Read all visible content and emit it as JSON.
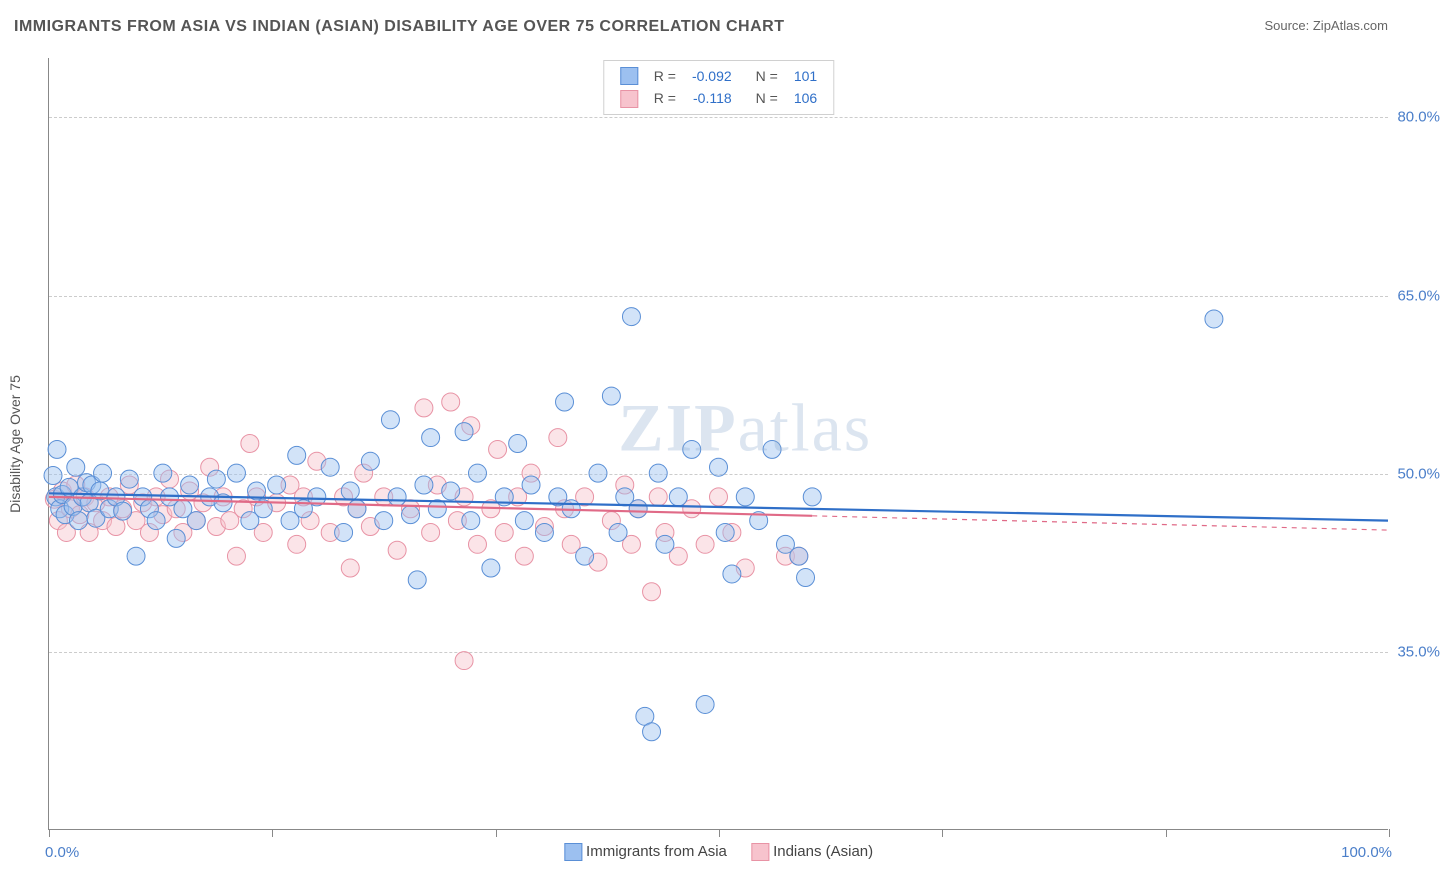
{
  "title": "IMMIGRANTS FROM ASIA VS INDIAN (ASIAN) DISABILITY AGE OVER 75 CORRELATION CHART",
  "source_prefix": "Source: ",
  "source_name": "ZipAtlas.com",
  "watermark_zip": "ZIP",
  "watermark_atlas": "atlas",
  "yaxis_title": "Disability Age Over 75",
  "chart": {
    "type": "scatter",
    "xlim": [
      0,
      100
    ],
    "ylim": [
      20,
      85
    ],
    "ygrid_values": [
      35.0,
      50.0,
      65.0,
      80.0
    ],
    "ygrid_labels": [
      "35.0%",
      "50.0%",
      "65.0%",
      "80.0%"
    ],
    "xtick_values": [
      0,
      16.67,
      33.33,
      50.0,
      66.67,
      83.33,
      100.0
    ],
    "xaxis_label_left": "0.0%",
    "xaxis_label_right": "100.0%",
    "background_color": "#ffffff",
    "grid_color": "#cccccc",
    "axis_color": "#888888",
    "point_radius": 9,
    "point_opacity": 0.45,
    "line_width": 2.2,
    "series": [
      {
        "id": "blue",
        "name": "Immigrants from Asia",
        "fill": "#9cc0f0",
        "stroke": "#5a8fd6",
        "line_color": "#2f6fc8",
        "R": "-0.092",
        "N": "101",
        "trend": {
          "x1": 0,
          "y1": 48.3,
          "x2": 100,
          "y2": 46.0,
          "solid_until": 100
        },
        "points": [
          [
            0.3,
            49.8
          ],
          [
            0.5,
            48.0
          ],
          [
            0.6,
            52.0
          ],
          [
            0.8,
            47.0
          ],
          [
            1.0,
            48.2
          ],
          [
            1.2,
            46.5
          ],
          [
            1.5,
            48.8
          ],
          [
            1.8,
            47.2
          ],
          [
            2.0,
            50.5
          ],
          [
            2.2,
            46.0
          ],
          [
            2.5,
            48.0
          ],
          [
            2.8,
            49.2
          ],
          [
            3.0,
            47.5
          ],
          [
            3.2,
            49.0
          ],
          [
            3.5,
            46.2
          ],
          [
            3.8,
            48.5
          ],
          [
            4.0,
            50.0
          ],
          [
            4.5,
            47.0
          ],
          [
            5.0,
            48.0
          ],
          [
            5.5,
            46.8
          ],
          [
            6.0,
            49.5
          ],
          [
            6.5,
            43.0
          ],
          [
            7.0,
            48.0
          ],
          [
            7.5,
            47.0
          ],
          [
            8.0,
            46.0
          ],
          [
            8.5,
            50.0
          ],
          [
            9.0,
            48.0
          ],
          [
            9.5,
            44.5
          ],
          [
            10.0,
            47.0
          ],
          [
            10.5,
            49.0
          ],
          [
            11.0,
            46.0
          ],
          [
            12.0,
            48.0
          ],
          [
            12.5,
            49.5
          ],
          [
            13.0,
            47.5
          ],
          [
            14.0,
            50.0
          ],
          [
            15.0,
            46.0
          ],
          [
            15.5,
            48.5
          ],
          [
            16.0,
            47.0
          ],
          [
            17.0,
            49.0
          ],
          [
            18.0,
            46.0
          ],
          [
            18.5,
            51.5
          ],
          [
            19.0,
            47.0
          ],
          [
            20.0,
            48.0
          ],
          [
            21.0,
            50.5
          ],
          [
            22.0,
            45.0
          ],
          [
            22.5,
            48.5
          ],
          [
            23.0,
            47.0
          ],
          [
            24.0,
            51.0
          ],
          [
            25.0,
            46.0
          ],
          [
            25.5,
            54.5
          ],
          [
            26.0,
            48.0
          ],
          [
            27.0,
            46.5
          ],
          [
            27.5,
            41.0
          ],
          [
            28.0,
            49.0
          ],
          [
            28.5,
            53.0
          ],
          [
            29.0,
            47.0
          ],
          [
            30.0,
            48.5
          ],
          [
            31.0,
            53.5
          ],
          [
            31.5,
            46.0
          ],
          [
            32.0,
            50.0
          ],
          [
            33.0,
            42.0
          ],
          [
            34.0,
            48.0
          ],
          [
            35.0,
            52.5
          ],
          [
            35.5,
            46.0
          ],
          [
            36.0,
            49.0
          ],
          [
            37.0,
            45.0
          ],
          [
            38.0,
            48.0
          ],
          [
            38.5,
            56.0
          ],
          [
            39.0,
            47.0
          ],
          [
            40.0,
            43.0
          ],
          [
            41.0,
            50.0
          ],
          [
            42.0,
            56.5
          ],
          [
            42.5,
            45.0
          ],
          [
            43.0,
            48.0
          ],
          [
            43.5,
            63.2
          ],
          [
            44.0,
            47.0
          ],
          [
            44.5,
            29.5
          ],
          [
            45.0,
            28.2
          ],
          [
            45.5,
            50.0
          ],
          [
            46.0,
            44.0
          ],
          [
            47.0,
            48.0
          ],
          [
            48.0,
            52.0
          ],
          [
            49.0,
            30.5
          ],
          [
            50.0,
            50.5
          ],
          [
            50.5,
            45.0
          ],
          [
            51.0,
            41.5
          ],
          [
            52.0,
            48.0
          ],
          [
            53.0,
            46.0
          ],
          [
            54.0,
            52.0
          ],
          [
            55.0,
            44.0
          ],
          [
            56.0,
            43.0
          ],
          [
            56.5,
            41.2
          ],
          [
            57.0,
            48.0
          ],
          [
            87.0,
            63.0
          ]
        ]
      },
      {
        "id": "pink",
        "name": "Indians (Asian)",
        "fill": "#f7c3cd",
        "stroke": "#e893a5",
        "line_color": "#e06a87",
        "R": "-0.118",
        "N": "106",
        "trend": {
          "x1": 0,
          "y1": 48.0,
          "x2": 100,
          "y2": 45.2,
          "solid_until": 57
        },
        "points": [
          [
            0.4,
            47.8
          ],
          [
            0.7,
            46.0
          ],
          [
            1.0,
            48.5
          ],
          [
            1.3,
            45.0
          ],
          [
            1.6,
            47.0
          ],
          [
            2.0,
            49.0
          ],
          [
            2.3,
            46.5
          ],
          [
            2.7,
            48.0
          ],
          [
            3.0,
            45.0
          ],
          [
            3.5,
            47.5
          ],
          [
            4.0,
            46.0
          ],
          [
            4.5,
            48.0
          ],
          [
            5.0,
            45.5
          ],
          [
            5.5,
            47.0
          ],
          [
            6.0,
            49.0
          ],
          [
            6.5,
            46.0
          ],
          [
            7.0,
            47.5
          ],
          [
            7.5,
            45.0
          ],
          [
            8.0,
            48.0
          ],
          [
            8.5,
            46.5
          ],
          [
            9.0,
            49.5
          ],
          [
            9.5,
            47.0
          ],
          [
            10.0,
            45.0
          ],
          [
            10.5,
            48.5
          ],
          [
            11.0,
            46.0
          ],
          [
            11.5,
            47.5
          ],
          [
            12.0,
            50.5
          ],
          [
            12.5,
            45.5
          ],
          [
            13.0,
            48.0
          ],
          [
            13.5,
            46.0
          ],
          [
            14.0,
            43.0
          ],
          [
            14.5,
            47.0
          ],
          [
            15.0,
            52.5
          ],
          [
            15.5,
            48.0
          ],
          [
            16.0,
            45.0
          ],
          [
            17.0,
            47.5
          ],
          [
            18.0,
            49.0
          ],
          [
            18.5,
            44.0
          ],
          [
            19.0,
            48.0
          ],
          [
            19.5,
            46.0
          ],
          [
            20.0,
            51.0
          ],
          [
            21.0,
            45.0
          ],
          [
            22.0,
            48.0
          ],
          [
            22.5,
            42.0
          ],
          [
            23.0,
            47.0
          ],
          [
            23.5,
            50.0
          ],
          [
            24.0,
            45.5
          ],
          [
            25.0,
            48.0
          ],
          [
            26.0,
            43.5
          ],
          [
            27.0,
            47.0
          ],
          [
            28.0,
            55.5
          ],
          [
            28.5,
            45.0
          ],
          [
            29.0,
            49.0
          ],
          [
            30.0,
            56.0
          ],
          [
            30.5,
            46.0
          ],
          [
            31.0,
            48.0
          ],
          [
            31.5,
            54.0
          ],
          [
            32.0,
            44.0
          ],
          [
            33.0,
            47.0
          ],
          [
            33.5,
            52.0
          ],
          [
            34.0,
            45.0
          ],
          [
            35.0,
            48.0
          ],
          [
            35.5,
            43.0
          ],
          [
            36.0,
            50.0
          ],
          [
            37.0,
            45.5
          ],
          [
            38.0,
            53.0
          ],
          [
            38.5,
            47.0
          ],
          [
            39.0,
            44.0
          ],
          [
            40.0,
            48.0
          ],
          [
            41.0,
            42.5
          ],
          [
            42.0,
            46.0
          ],
          [
            43.0,
            49.0
          ],
          [
            43.5,
            44.0
          ],
          [
            44.0,
            47.0
          ],
          [
            45.0,
            40.0
          ],
          [
            45.5,
            48.0
          ],
          [
            46.0,
            45.0
          ],
          [
            47.0,
            43.0
          ],
          [
            48.0,
            47.0
          ],
          [
            49.0,
            44.0
          ],
          [
            50.0,
            48.0
          ],
          [
            51.0,
            45.0
          ],
          [
            52.0,
            42.0
          ],
          [
            55.0,
            43.0
          ],
          [
            56.0,
            43.0
          ],
          [
            31.0,
            34.2
          ]
        ]
      }
    ],
    "legend_top": {
      "r_label": "R =",
      "n_label": "N ="
    },
    "legend_bottom": [
      {
        "name": "Immigrants from Asia",
        "fill": "#9cc0f0",
        "stroke": "#5a8fd6"
      },
      {
        "name": "Indians (Asian)",
        "fill": "#f7c3cd",
        "stroke": "#e893a5"
      }
    ]
  }
}
